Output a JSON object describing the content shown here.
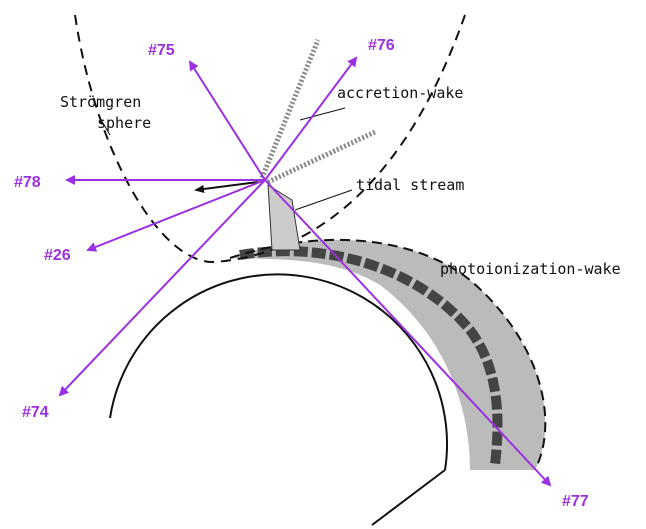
{
  "annotations": {
    "stromgren_line1": "Strömgren",
    "stromgren_line2": "sphere",
    "accretion_wake": "accretion-wake",
    "tidal_stream": "tidal stream",
    "photoionization_wake": "photoionization-wake"
  },
  "markers": [
    {
      "label": "#75"
    },
    {
      "label": "#76"
    },
    {
      "label": "#78"
    },
    {
      "label": "#26"
    },
    {
      "label": "#74"
    },
    {
      "label": "#77"
    }
  ]
}
